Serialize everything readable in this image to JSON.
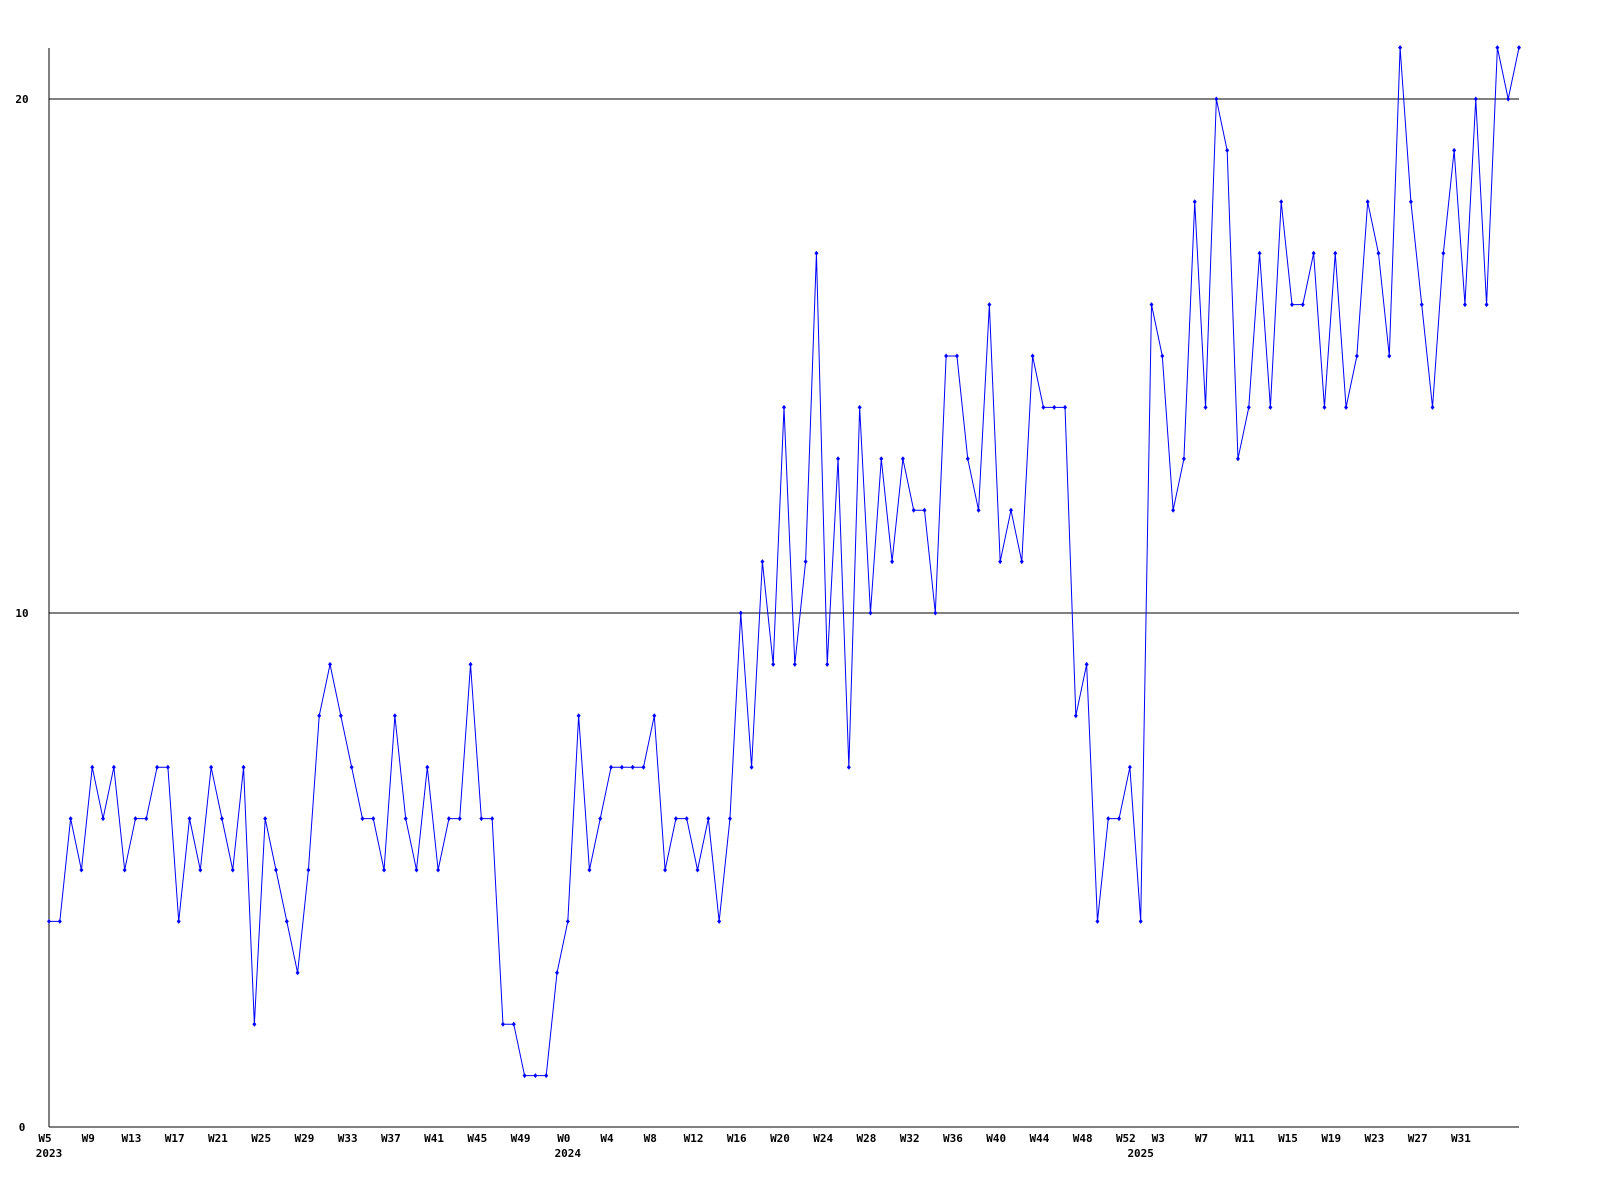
{
  "chart_data": {
    "type": "line",
    "color": "#0000ff",
    "grid": true,
    "ylim": [
      0,
      21
    ],
    "yticks": [
      0,
      10,
      20
    ],
    "categories": [
      "W5",
      null,
      null,
      null,
      "W9",
      null,
      null,
      null,
      "W13",
      null,
      null,
      null,
      "W17",
      null,
      null,
      null,
      "W21",
      null,
      null,
      null,
      "W25",
      null,
      null,
      null,
      "W29",
      null,
      null,
      null,
      "W33",
      null,
      null,
      null,
      "W37",
      null,
      null,
      null,
      "W41",
      null,
      null,
      null,
      "W45",
      null,
      null,
      null,
      "W49",
      null,
      null,
      null,
      "W0",
      null,
      null,
      null,
      "W4",
      null,
      null,
      null,
      "W8",
      null,
      null,
      null,
      "W12",
      null,
      null,
      null,
      "W16",
      null,
      null,
      null,
      "W20",
      null,
      null,
      null,
      "W24",
      null,
      null,
      null,
      "W28",
      null,
      null,
      null,
      "W32",
      null,
      null,
      null,
      "W36",
      null,
      null,
      null,
      "W40",
      null,
      null,
      null,
      "W44",
      null,
      null,
      null,
      "W48",
      null,
      null,
      null,
      "W52",
      null,
      null,
      "W3",
      null,
      null,
      null,
      "W7",
      null,
      null,
      null,
      "W11",
      null,
      null,
      null,
      "W15",
      null,
      null,
      null,
      "W19",
      null,
      null,
      null,
      "W23",
      null,
      null,
      null,
      "W27",
      null,
      null,
      null,
      "W31",
      null,
      null,
      null,
      null,
      null
    ],
    "x_year_labels": [
      "2023",
      null,
      null,
      null,
      null,
      null,
      null,
      null,
      null,
      null,
      null,
      null,
      null,
      null,
      null,
      null,
      null,
      null,
      null,
      null,
      null,
      null,
      null,
      null,
      null,
      null,
      null,
      null,
      null,
      null,
      null,
      null,
      null,
      null,
      null,
      null,
      null,
      null,
      null,
      null,
      null,
      null,
      null,
      null,
      null,
      null,
      null,
      null,
      "2024",
      null,
      null,
      null,
      null,
      null,
      null,
      null,
      null,
      null,
      null,
      null,
      null,
      null,
      null,
      null,
      null,
      null,
      null,
      null,
      null,
      null,
      null,
      null,
      null,
      null,
      null,
      null,
      null,
      null,
      null,
      null,
      null,
      null,
      null,
      null,
      null,
      null,
      null,
      null,
      null,
      null,
      null,
      null,
      null,
      null,
      null,
      null,
      null,
      null,
      null,
      null,
      null,
      "2025",
      null,
      null,
      null,
      null,
      null,
      null,
      null,
      null,
      null,
      null,
      null,
      null,
      null,
      null,
      null,
      null,
      null,
      null,
      null,
      null,
      null,
      null,
      null,
      null,
      null,
      null,
      null,
      null,
      null,
      null,
      null,
      null,
      null,
      null,
      null
    ],
    "values": [
      4,
      4,
      6,
      5,
      7,
      6,
      7,
      5,
      6,
      6,
      7,
      7,
      4,
      6,
      5,
      7,
      6,
      5,
      7,
      2,
      6,
      5,
      4,
      3,
      5,
      8,
      9,
      8,
      7,
      6,
      6,
      5,
      8,
      6,
      5,
      7,
      5,
      6,
      6,
      9,
      6,
      6,
      2,
      2,
      1,
      1,
      1,
      3,
      4,
      8,
      5,
      6,
      7,
      7,
      7,
      7,
      8,
      5,
      6,
      6,
      5,
      6,
      4,
      6,
      10,
      7,
      11,
      9,
      14,
      9,
      11,
      17,
      9,
      13,
      7,
      14,
      10,
      13,
      11,
      13,
      12,
      12,
      10,
      15,
      15,
      13,
      12,
      16,
      11,
      12,
      11,
      15,
      14,
      14,
      14,
      8,
      9,
      4,
      6,
      6,
      7,
      4,
      16,
      15,
      12,
      13,
      18,
      14,
      20,
      19,
      13,
      14,
      17,
      14,
      18,
      16,
      16,
      17,
      14,
      17,
      14,
      15,
      18,
      17,
      15,
      21,
      18,
      16,
      14,
      17,
      19,
      16,
      20,
      16,
      21,
      20,
      21
    ]
  }
}
